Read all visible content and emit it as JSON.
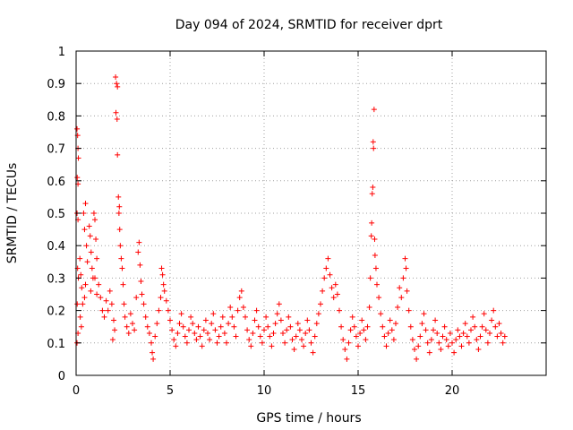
{
  "chart_data": {
    "type": "scatter",
    "title": "Day 094 of 2024, SRMTID for receiver dprt",
    "xlabel": "GPS time / hours",
    "ylabel": "SRMTID / TECUs",
    "xlim": [
      0,
      25
    ],
    "ylim": [
      0,
      1
    ],
    "xticks": [
      0,
      5,
      10,
      15,
      20
    ],
    "xtick_labels": [
      "0",
      "5",
      "10",
      "15",
      "20"
    ],
    "yticks": [
      0,
      0.1,
      0.2,
      0.3,
      0.4,
      0.5,
      0.6,
      0.7,
      0.8,
      0.9,
      1
    ],
    "ytick_labels": [
      "0",
      "0.1",
      "0.2",
      "0.3",
      "0.4",
      "0.5",
      "0.6",
      "0.7",
      "0.8",
      "0.9",
      "1"
    ],
    "grid": true,
    "marker": "+",
    "marker_color": "#ff0000",
    "series": [
      {
        "name": "SRMTID",
        "points": [
          [
            0.05,
            0.76
          ],
          [
            0.08,
            0.74
          ],
          [
            0.1,
            0.7
          ],
          [
            0.12,
            0.67
          ],
          [
            0.06,
            0.61
          ],
          [
            0.1,
            0.59
          ],
          [
            0.05,
            0.5
          ],
          [
            0.1,
            0.48
          ],
          [
            0.08,
            0.33
          ],
          [
            0.12,
            0.3
          ],
          [
            0.06,
            0.22
          ],
          [
            0.1,
            0.13
          ],
          [
            0.05,
            0.1
          ],
          [
            0.2,
            0.36
          ],
          [
            0.25,
            0.31
          ],
          [
            0.3,
            0.27
          ],
          [
            0.35,
            0.22
          ],
          [
            0.22,
            0.18
          ],
          [
            0.28,
            0.15
          ],
          [
            0.4,
            0.5
          ],
          [
            0.45,
            0.45
          ],
          [
            0.5,
            0.53
          ],
          [
            0.55,
            0.4
          ],
          [
            0.6,
            0.35
          ],
          [
            0.5,
            0.28
          ],
          [
            0.45,
            0.24
          ],
          [
            0.7,
            0.46
          ],
          [
            0.75,
            0.43
          ],
          [
            0.8,
            0.38
          ],
          [
            0.85,
            0.33
          ],
          [
            0.9,
            0.3
          ],
          [
            0.78,
            0.26
          ],
          [
            0.95,
            0.5
          ],
          [
            1.0,
            0.48
          ],
          [
            1.05,
            0.42
          ],
          [
            1.1,
            0.36
          ],
          [
            1.0,
            0.3
          ],
          [
            1.1,
            0.25
          ],
          [
            1.2,
            0.28
          ],
          [
            1.3,
            0.24
          ],
          [
            1.4,
            0.2
          ],
          [
            1.5,
            0.18
          ],
          [
            1.6,
            0.23
          ],
          [
            1.7,
            0.2
          ],
          [
            1.8,
            0.26
          ],
          [
            1.9,
            0.22
          ],
          [
            2.0,
            0.17
          ],
          [
            2.05,
            0.14
          ],
          [
            1.95,
            0.11
          ],
          [
            2.1,
            0.92
          ],
          [
            2.15,
            0.9
          ],
          [
            2.2,
            0.89
          ],
          [
            2.12,
            0.81
          ],
          [
            2.18,
            0.79
          ],
          [
            2.2,
            0.68
          ],
          [
            2.25,
            0.55
          ],
          [
            2.3,
            0.52
          ],
          [
            2.28,
            0.5
          ],
          [
            2.32,
            0.45
          ],
          [
            2.35,
            0.4
          ],
          [
            2.4,
            0.36
          ],
          [
            2.45,
            0.33
          ],
          [
            2.5,
            0.28
          ],
          [
            2.55,
            0.22
          ],
          [
            2.6,
            0.18
          ],
          [
            2.7,
            0.15
          ],
          [
            2.8,
            0.13
          ],
          [
            2.9,
            0.19
          ],
          [
            3.0,
            0.16
          ],
          [
            3.1,
            0.14
          ],
          [
            3.2,
            0.24
          ],
          [
            3.3,
            0.38
          ],
          [
            3.35,
            0.41
          ],
          [
            3.4,
            0.34
          ],
          [
            3.45,
            0.29
          ],
          [
            3.5,
            0.25
          ],
          [
            3.6,
            0.22
          ],
          [
            3.7,
            0.18
          ],
          [
            3.8,
            0.15
          ],
          [
            3.9,
            0.13
          ],
          [
            4.0,
            0.1
          ],
          [
            4.05,
            0.07
          ],
          [
            4.1,
            0.05
          ],
          [
            4.2,
            0.12
          ],
          [
            4.3,
            0.16
          ],
          [
            4.4,
            0.2
          ],
          [
            4.5,
            0.24
          ],
          [
            4.55,
            0.33
          ],
          [
            4.6,
            0.31
          ],
          [
            4.65,
            0.28
          ],
          [
            4.7,
            0.26
          ],
          [
            4.8,
            0.23
          ],
          [
            4.9,
            0.2
          ],
          [
            5.0,
            0.17
          ],
          [
            5.1,
            0.14
          ],
          [
            5.2,
            0.11
          ],
          [
            5.3,
            0.09
          ],
          [
            5.4,
            0.13
          ],
          [
            5.5,
            0.16
          ],
          [
            5.6,
            0.19
          ],
          [
            5.7,
            0.15
          ],
          [
            5.8,
            0.12
          ],
          [
            5.9,
            0.1
          ],
          [
            6.0,
            0.14
          ],
          [
            6.1,
            0.18
          ],
          [
            6.2,
            0.16
          ],
          [
            6.3,
            0.13
          ],
          [
            6.4,
            0.11
          ],
          [
            6.5,
            0.15
          ],
          [
            6.6,
            0.12
          ],
          [
            6.7,
            0.09
          ],
          [
            6.8,
            0.14
          ],
          [
            6.9,
            0.17
          ],
          [
            7.0,
            0.13
          ],
          [
            7.1,
            0.11
          ],
          [
            7.2,
            0.16
          ],
          [
            7.3,
            0.19
          ],
          [
            7.4,
            0.14
          ],
          [
            7.5,
            0.1
          ],
          [
            7.6,
            0.12
          ],
          [
            7.7,
            0.15
          ],
          [
            7.8,
            0.18
          ],
          [
            7.9,
            0.13
          ],
          [
            8.0,
            0.1
          ],
          [
            8.1,
            0.16
          ],
          [
            8.2,
            0.21
          ],
          [
            8.3,
            0.18
          ],
          [
            8.4,
            0.15
          ],
          [
            8.5,
            0.12
          ],
          [
            8.6,
            0.2
          ],
          [
            8.7,
            0.24
          ],
          [
            8.8,
            0.26
          ],
          [
            8.9,
            0.21
          ],
          [
            9.0,
            0.18
          ],
          [
            9.1,
            0.14
          ],
          [
            9.2,
            0.11
          ],
          [
            9.3,
            0.09
          ],
          [
            9.4,
            0.13
          ],
          [
            9.5,
            0.17
          ],
          [
            9.6,
            0.2
          ],
          [
            9.7,
            0.15
          ],
          [
            9.8,
            0.12
          ],
          [
            9.9,
            0.1
          ],
          [
            10.0,
            0.14
          ],
          [
            10.1,
            0.18
          ],
          [
            10.2,
            0.15
          ],
          [
            10.3,
            0.12
          ],
          [
            10.4,
            0.09
          ],
          [
            10.5,
            0.13
          ],
          [
            10.6,
            0.16
          ],
          [
            10.7,
            0.19
          ],
          [
            10.8,
            0.22
          ],
          [
            10.9,
            0.17
          ],
          [
            11.0,
            0.13
          ],
          [
            11.1,
            0.1
          ],
          [
            11.2,
            0.14
          ],
          [
            11.3,
            0.18
          ],
          [
            11.4,
            0.15
          ],
          [
            11.5,
            0.11
          ],
          [
            11.6,
            0.08
          ],
          [
            11.7,
            0.12
          ],
          [
            11.8,
            0.16
          ],
          [
            11.9,
            0.14
          ],
          [
            12.0,
            0.11
          ],
          [
            12.1,
            0.09
          ],
          [
            12.2,
            0.13
          ],
          [
            12.3,
            0.17
          ],
          [
            12.4,
            0.14
          ],
          [
            12.5,
            0.1
          ],
          [
            12.6,
            0.07
          ],
          [
            12.7,
            0.12
          ],
          [
            12.8,
            0.16
          ],
          [
            12.9,
            0.19
          ],
          [
            13.0,
            0.22
          ],
          [
            13.1,
            0.26
          ],
          [
            13.2,
            0.3
          ],
          [
            13.3,
            0.33
          ],
          [
            13.4,
            0.36
          ],
          [
            13.5,
            0.31
          ],
          [
            13.6,
            0.27
          ],
          [
            13.7,
            0.24
          ],
          [
            13.8,
            0.28
          ],
          [
            13.9,
            0.25
          ],
          [
            14.0,
            0.2
          ],
          [
            14.1,
            0.15
          ],
          [
            14.2,
            0.11
          ],
          [
            14.3,
            0.08
          ],
          [
            14.4,
            0.05
          ],
          [
            14.5,
            0.1
          ],
          [
            14.6,
            0.14
          ],
          [
            14.7,
            0.18
          ],
          [
            14.8,
            0.15
          ],
          [
            14.9,
            0.12
          ],
          [
            15.0,
            0.09
          ],
          [
            15.1,
            0.13
          ],
          [
            15.2,
            0.17
          ],
          [
            15.3,
            0.14
          ],
          [
            15.4,
            0.11
          ],
          [
            15.5,
            0.15
          ],
          [
            15.6,
            0.21
          ],
          [
            15.65,
            0.3
          ],
          [
            15.7,
            0.43
          ],
          [
            15.72,
            0.47
          ],
          [
            15.75,
            0.56
          ],
          [
            15.78,
            0.58
          ],
          [
            15.8,
            0.72
          ],
          [
            15.82,
            0.7
          ],
          [
            15.85,
            0.82
          ],
          [
            15.88,
            0.42
          ],
          [
            15.9,
            0.37
          ],
          [
            15.95,
            0.33
          ],
          [
            16.0,
            0.28
          ],
          [
            16.1,
            0.24
          ],
          [
            16.2,
            0.19
          ],
          [
            16.3,
            0.15
          ],
          [
            16.4,
            0.12
          ],
          [
            16.5,
            0.09
          ],
          [
            16.6,
            0.13
          ],
          [
            16.7,
            0.17
          ],
          [
            16.8,
            0.14
          ],
          [
            16.9,
            0.11
          ],
          [
            17.0,
            0.16
          ],
          [
            17.1,
            0.21
          ],
          [
            17.2,
            0.27
          ],
          [
            17.3,
            0.24
          ],
          [
            17.4,
            0.3
          ],
          [
            17.5,
            0.36
          ],
          [
            17.55,
            0.33
          ],
          [
            17.6,
            0.26
          ],
          [
            17.7,
            0.2
          ],
          [
            17.8,
            0.15
          ],
          [
            17.9,
            0.11
          ],
          [
            18.0,
            0.08
          ],
          [
            18.1,
            0.05
          ],
          [
            18.2,
            0.09
          ],
          [
            18.3,
            0.12
          ],
          [
            18.4,
            0.16
          ],
          [
            18.5,
            0.19
          ],
          [
            18.6,
            0.14
          ],
          [
            18.7,
            0.1
          ],
          [
            18.8,
            0.07
          ],
          [
            18.9,
            0.11
          ],
          [
            19.0,
            0.14
          ],
          [
            19.1,
            0.17
          ],
          [
            19.2,
            0.13
          ],
          [
            19.3,
            0.1
          ],
          [
            19.4,
            0.08
          ],
          [
            19.5,
            0.12
          ],
          [
            19.6,
            0.15
          ],
          [
            19.7,
            0.11
          ],
          [
            19.8,
            0.09
          ],
          [
            19.9,
            0.13
          ],
          [
            20.0,
            0.1
          ],
          [
            20.1,
            0.07
          ],
          [
            20.2,
            0.11
          ],
          [
            20.3,
            0.14
          ],
          [
            20.4,
            0.12
          ],
          [
            20.5,
            0.09
          ],
          [
            20.6,
            0.13
          ],
          [
            20.7,
            0.16
          ],
          [
            20.8,
            0.12
          ],
          [
            20.9,
            0.1
          ],
          [
            21.0,
            0.14
          ],
          [
            21.1,
            0.18
          ],
          [
            21.2,
            0.15
          ],
          [
            21.3,
            0.11
          ],
          [
            21.4,
            0.08
          ],
          [
            21.5,
            0.12
          ],
          [
            21.6,
            0.15
          ],
          [
            21.7,
            0.19
          ],
          [
            21.8,
            0.14
          ],
          [
            21.9,
            0.1
          ],
          [
            22.0,
            0.13
          ],
          [
            22.1,
            0.17
          ],
          [
            22.2,
            0.2
          ],
          [
            22.3,
            0.15
          ],
          [
            22.4,
            0.12
          ],
          [
            22.5,
            0.16
          ],
          [
            22.6,
            0.13
          ],
          [
            22.7,
            0.1
          ],
          [
            22.8,
            0.12
          ]
        ]
      }
    ]
  }
}
